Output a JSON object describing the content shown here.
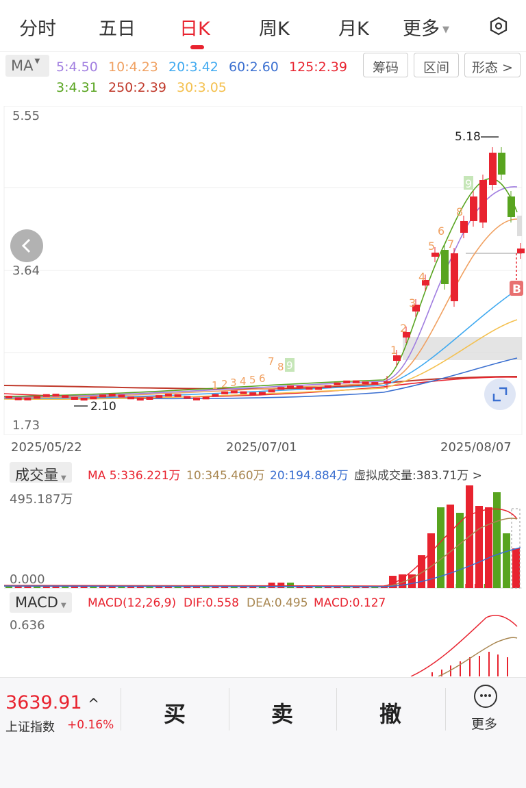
{
  "tabs": [
    "分时",
    "五日",
    "日K",
    "周K",
    "月K",
    "更多"
  ],
  "active_tab": "日K",
  "ma": {
    "label": "MA",
    "values": [
      {
        "text": "5:4.50",
        "color": "#a07de0"
      },
      {
        "text": "10:4.23",
        "color": "#f0a060"
      },
      {
        "text": "20:3.42",
        "color": "#3fa9f0"
      },
      {
        "text": "60:2.60",
        "color": "#3a6fd0"
      },
      {
        "text": "125:2.39",
        "color": "#e8232f"
      },
      {
        "text": "3:4.31",
        "color": "#58a41f"
      },
      {
        "text": "250:2.39",
        "color": "#c0392b"
      },
      {
        "text": "30:3.05",
        "color": "#f4c04e"
      }
    ]
  },
  "pills": [
    "筹码",
    "区间",
    "形态 >"
  ],
  "price_axis": {
    "top": "5.55",
    "mid": "3.64",
    "bottom": "1.73"
  },
  "high_marker": "5.18",
  "low_marker": "2.10",
  "dates": [
    "2025/05/22",
    "2025/07/01",
    "2025/08/07"
  ],
  "buy_badge": "B",
  "td_counts_top": [
    "1",
    "2",
    "3",
    "4",
    "5",
    "6",
    "7",
    "8",
    "9"
  ],
  "td_counts_mid": [
    "1",
    "2",
    "3",
    "4",
    "5",
    "6",
    "7",
    "8",
    "9"
  ],
  "volume": {
    "title": "成交量",
    "ma5": "MA 5:336.221万",
    "ma10": "10:345.460万",
    "ma20": "20:194.884万",
    "virtual": "虚拟成交量:383.71万 >",
    "top": "495.187万",
    "bottom": "0.000"
  },
  "macd": {
    "title": "MACD",
    "params": "MACD(12,26,9)",
    "dif": "DIF:0.558",
    "dea": "DEA:0.495",
    "macd": "MACD:0.127",
    "top": "0.636"
  },
  "index": {
    "value": "3639.91",
    "name": "上证指数",
    "pct": "+0.16%"
  },
  "actions": [
    "买",
    "卖",
    "撤"
  ],
  "more_label": "更多",
  "colors": {
    "up": "#e8232f",
    "down": "#58a41f",
    "accent": "#e8232f"
  }
}
